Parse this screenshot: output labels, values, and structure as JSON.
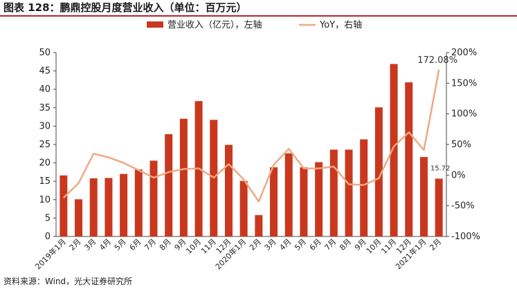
{
  "title": "图表 128：鹏鼎控股月度营业收入（单位：百万元）",
  "source": "资料来源：Wind，光大证券研究所",
  "colors": {
    "bar": "#c9381e",
    "line": "#f0a882",
    "title_rule": "#b8242e"
  },
  "chart_data": {
    "type": "bar",
    "categories": [
      "2019年1月",
      "2月",
      "3月",
      "4月",
      "5月",
      "6月",
      "7月",
      "8月",
      "9月",
      "10月",
      "11月",
      "12月",
      "2020年1月",
      "2月",
      "3月",
      "4月",
      "5月",
      "6月",
      "7月",
      "8月",
      "9月",
      "10月",
      "11月",
      "12月",
      "2021年1月",
      "2月"
    ],
    "series": [
      {
        "name": "营业收入（亿元），左轴",
        "type": "bar",
        "axis": "left",
        "values": [
          16.6,
          10.1,
          15.8,
          15.9,
          17.0,
          18.2,
          20.6,
          27.8,
          32.0,
          36.8,
          31.7,
          24.9,
          15.1,
          5.8,
          18.8,
          22.6,
          18.8,
          20.2,
          23.6,
          23.6,
          26.4,
          35.1,
          46.9,
          41.9,
          21.6,
          15.72
        ]
      },
      {
        "name": "YoY，右轴",
        "type": "line",
        "axis": "right",
        "values": [
          -37,
          -13,
          35,
          29,
          20,
          8,
          -4,
          5,
          10,
          11,
          -4,
          18,
          -7,
          -43,
          17,
          43,
          11,
          11,
          14,
          -15,
          -16,
          -5,
          47,
          70,
          41,
          172.08
        ]
      }
    ],
    "data_labels": [
      {
        "series": 0,
        "index": 25,
        "text": "15.72"
      },
      {
        "series": 1,
        "index": 25,
        "text": "172.08%"
      }
    ],
    "left_axis": {
      "ylim": [
        0,
        50
      ],
      "ticks": [
        "0",
        "5",
        "10",
        "15",
        "20",
        "25",
        "30",
        "35",
        "40",
        "45",
        "50"
      ]
    },
    "right_axis": {
      "ylim": [
        -100,
        200
      ],
      "ticks": [
        "-100%",
        "-50%",
        "0%",
        "50%",
        "100%",
        "150%",
        "200%"
      ]
    },
    "legend_position": "top-center",
    "grid": false
  }
}
